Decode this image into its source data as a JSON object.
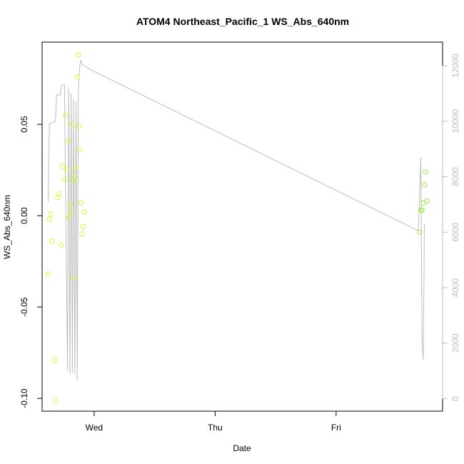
{
  "chart_data": {
    "type": "scatter",
    "title": "ATOM4 Northeast_Pacific_1 WS_Abs_640nm",
    "xlabel": "Date",
    "ylabel": "WS_Abs_640nm",
    "x_ticks": [
      "Wed",
      "Thu",
      "Fri"
    ],
    "x_tick_days": [
      1,
      2,
      3
    ],
    "x_range_days": [
      0.57,
      3.88
    ],
    "ylim": [
      -0.107,
      0.095
    ],
    "y_ticks": [
      "-0.10",
      "-0.05",
      "0.00",
      "0.05"
    ],
    "y_tick_values": [
      -0.1,
      -0.05,
      0.0,
      0.05
    ],
    "y2lim": [
      -450,
      12850
    ],
    "y2_ticks": [
      "0",
      "2000",
      "4000",
      "6000",
      "8000",
      "10000",
      "12000"
    ],
    "y2_tick_values": [
      0,
      2000,
      4000,
      6000,
      8000,
      10000,
      12000
    ],
    "grid": false,
    "legend": "none",
    "colors": {
      "points": "#ccff33",
      "points_late": "#99ee44",
      "line": "#bdbdbd",
      "axis": "#000000"
    },
    "series": [
      {
        "kind": "points",
        "axis": "left",
        "x_days": [
          0.62,
          0.63,
          0.64,
          0.65,
          0.67,
          0.68,
          0.7,
          0.71,
          0.73,
          0.74,
          0.755,
          0.765,
          0.775,
          0.785,
          0.79,
          0.8,
          0.81,
          0.815,
          0.82,
          0.83,
          0.84,
          0.85,
          0.86,
          0.87,
          0.875,
          0.88,
          0.89,
          0.9,
          0.91,
          0.92,
          3.69,
          3.7,
          3.71,
          3.72,
          3.73,
          3.74,
          3.75
        ],
        "values": [
          -0.032,
          -0.002,
          0.001,
          -0.014,
          -0.079,
          -0.101,
          0.01,
          0.012,
          -0.016,
          0.027,
          0.02,
          0.055,
          0.025,
          0.041,
          -0.001,
          0.006,
          0.002,
          0.05,
          0.019,
          -0.034,
          0.021,
          0.026,
          0.076,
          0.088,
          0.049,
          0.036,
          0.007,
          -0.01,
          -0.006,
          0.002,
          -0.009,
          0.003,
          0.003,
          0.007,
          0.017,
          0.024,
          0.008
        ],
        "late_from_index": 30
      },
      {
        "kind": "line",
        "axis": "right",
        "x_days": [
          0.62,
          0.63,
          0.65,
          0.68,
          0.69,
          0.72,
          0.73,
          0.755,
          0.76,
          0.78,
          0.79,
          0.8,
          0.81,
          0.82,
          0.83,
          0.84,
          0.85,
          0.86,
          0.87,
          0.88,
          0.89,
          0.9,
          0.92,
          0.95,
          3.68,
          3.7,
          3.71,
          3.72,
          3.73
        ],
        "values": [
          7100,
          9900,
          9950,
          10000,
          10950,
          10950,
          11300,
          11300,
          9000,
          1000,
          11200,
          900,
          11000,
          950,
          10800,
          900,
          10700,
          650,
          11000,
          11950,
          12200,
          12050,
          12000,
          11900,
          6050,
          8700,
          2200,
          1400,
          6300
        ]
      }
    ]
  }
}
